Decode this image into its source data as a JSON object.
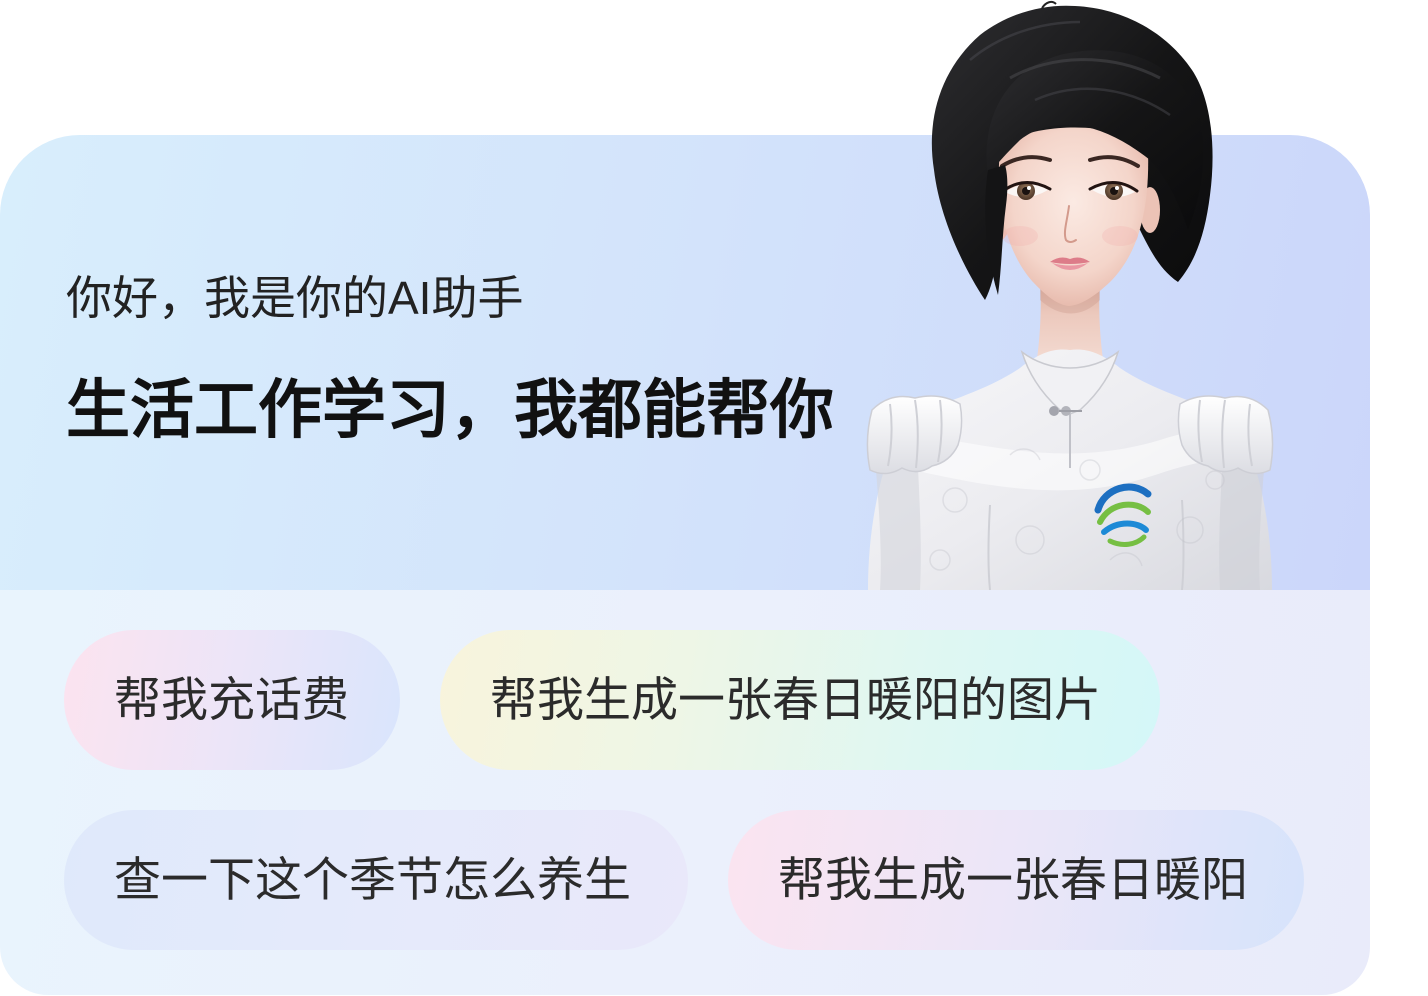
{
  "header": {
    "greeting": "你好，我是你的AI助手",
    "headline": "生活工作学习，我都能帮你"
  },
  "avatar": {
    "logo_icon": "china-mobile-logo"
  },
  "suggestions": [
    {
      "label": "帮我充话费",
      "colors": [
        "#fce3ef",
        "#ece5f8",
        "#d9e5fc"
      ]
    },
    {
      "label": "帮我生成一张春日暖阳的图片",
      "colors": [
        "#f8f4dc",
        "#eef6e6",
        "#dff7f2",
        "#d4f7f8"
      ]
    },
    {
      "label": "查一下这个季节怎么养生",
      "colors": [
        "#dfe9fb",
        "#e5eafb",
        "#e9e8fa"
      ]
    },
    {
      "label": "帮我生成一张春日暖阳",
      "colors": [
        "#fbe4f0",
        "#ebe6f8",
        "#d6e3fb"
      ]
    }
  ],
  "theme": {
    "header_gradient": [
      "#d8eefc",
      "#d3e3fb",
      "#cbd6fa"
    ],
    "panel_gradient": [
      "#e9f4fd",
      "#ebf0fc",
      "#e9ebfa"
    ],
    "logo_blue": "#1d6fc1",
    "logo_green": "#76bf43"
  }
}
